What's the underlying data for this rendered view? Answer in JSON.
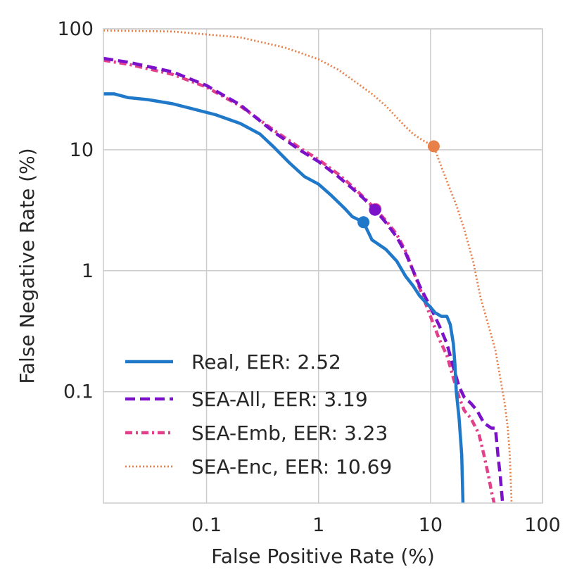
{
  "chart_data": {
    "type": "line",
    "title": "",
    "xlabel": "False Positive Rate (%)",
    "ylabel": "False Negative Rate (%)",
    "xscale": "log",
    "yscale": "log",
    "xlim": [
      0.012,
      100
    ],
    "ylim": [
      0.012,
      100
    ],
    "xticks": [
      {
        "value": 0.1,
        "label": "0.1"
      },
      {
        "value": 1,
        "label": "1"
      },
      {
        "value": 10,
        "label": "10"
      },
      {
        "value": 100,
        "label": "100"
      }
    ],
    "yticks": [
      {
        "value": 0.1,
        "label": "0.1"
      },
      {
        "value": 1,
        "label": "1"
      },
      {
        "value": 10,
        "label": "10"
      },
      {
        "value": 100,
        "label": "100"
      }
    ],
    "grid": true,
    "legend_position": "bottom-left",
    "series": [
      {
        "name": "Real, EER: 2.52",
        "color": "#1f78c8",
        "style": "solid",
        "eer": 2.52,
        "eer_point": [
          2.52,
          2.52
        ],
        "points": [
          [
            0.012,
            29
          ],
          [
            0.015,
            29
          ],
          [
            0.02,
            27
          ],
          [
            0.03,
            26
          ],
          [
            0.05,
            24
          ],
          [
            0.08,
            21.5
          ],
          [
            0.12,
            19.5
          ],
          [
            0.2,
            16.5
          ],
          [
            0.3,
            13.5
          ],
          [
            0.4,
            10.5
          ],
          [
            0.55,
            7.8
          ],
          [
            0.75,
            6.0
          ],
          [
            1.0,
            5.2
          ],
          [
            1.3,
            4.2
          ],
          [
            1.7,
            3.3
          ],
          [
            2.0,
            2.8
          ],
          [
            2.52,
            2.52
          ],
          [
            3.0,
            1.8
          ],
          [
            4.0,
            1.5
          ],
          [
            5.0,
            1.2
          ],
          [
            6.0,
            0.9
          ],
          [
            7.0,
            0.75
          ],
          [
            8.0,
            0.62
          ],
          [
            9.0,
            0.55
          ],
          [
            10.0,
            0.5
          ],
          [
            11.0,
            0.45
          ],
          [
            12.5,
            0.42
          ],
          [
            14.0,
            0.42
          ],
          [
            15.0,
            0.36
          ],
          [
            16.0,
            0.25
          ],
          [
            16.5,
            0.17
          ],
          [
            17.0,
            0.1
          ],
          [
            18.0,
            0.06
          ],
          [
            19.0,
            0.03
          ],
          [
            19.5,
            0.012
          ]
        ]
      },
      {
        "name": "SEA-All, EER: 3.19",
        "color": "#7b12c9",
        "style": "dashed",
        "eer": 3.19,
        "eer_point": [
          3.19,
          3.19
        ],
        "points": [
          [
            0.012,
            57
          ],
          [
            0.02,
            53
          ],
          [
            0.05,
            44
          ],
          [
            0.1,
            34
          ],
          [
            0.2,
            23.5
          ],
          [
            0.4,
            14
          ],
          [
            0.7,
            9.8
          ],
          [
            1.0,
            8.0
          ],
          [
            1.5,
            6.0
          ],
          [
            2.0,
            4.8
          ],
          [
            2.5,
            4.0
          ],
          [
            3.19,
            3.19
          ],
          [
            4.0,
            2.5
          ],
          [
            5.0,
            1.9
          ],
          [
            6.0,
            1.4
          ],
          [
            7.0,
            1.0
          ],
          [
            8.0,
            0.75
          ],
          [
            10.0,
            0.5
          ],
          [
            12.0,
            0.35
          ],
          [
            14.0,
            0.25
          ],
          [
            16.0,
            0.16
          ],
          [
            18.0,
            0.11
          ],
          [
            20.0,
            0.09
          ],
          [
            23.0,
            0.08
          ],
          [
            26.0,
            0.07
          ],
          [
            30.0,
            0.055
          ],
          [
            35.0,
            0.05
          ],
          [
            38.0,
            0.05
          ],
          [
            40.0,
            0.03
          ],
          [
            42.0,
            0.02
          ],
          [
            44.0,
            0.012
          ]
        ]
      },
      {
        "name": "SEA-Emb, EER: 3.23",
        "color": "#e2408a",
        "style": "dashdot",
        "eer": 3.23,
        "eer_point": [
          3.23,
          3.23
        ],
        "points": [
          [
            0.012,
            55
          ],
          [
            0.02,
            51
          ],
          [
            0.05,
            42
          ],
          [
            0.1,
            33
          ],
          [
            0.2,
            23
          ],
          [
            0.4,
            14.5
          ],
          [
            0.7,
            10.2
          ],
          [
            1.0,
            8.3
          ],
          [
            1.5,
            6.3
          ],
          [
            2.0,
            5.0
          ],
          [
            2.5,
            4.1
          ],
          [
            3.23,
            3.23
          ],
          [
            4.0,
            2.6
          ],
          [
            5.0,
            2.0
          ],
          [
            6.0,
            1.45
          ],
          [
            7.0,
            1.0
          ],
          [
            8.0,
            0.72
          ],
          [
            10.0,
            0.42
          ],
          [
            12.0,
            0.27
          ],
          [
            14.0,
            0.2
          ],
          [
            16.0,
            0.13
          ],
          [
            18.0,
            0.09
          ],
          [
            20.0,
            0.07
          ],
          [
            23.0,
            0.06
          ],
          [
            27.0,
            0.045
          ],
          [
            30.0,
            0.03
          ],
          [
            33.0,
            0.02
          ],
          [
            35.0,
            0.015
          ],
          [
            37.0,
            0.012
          ]
        ]
      },
      {
        "name": "SEA-Enc, EER: 10.69",
        "color": "#e8804a",
        "style": "dotted",
        "eer": 10.69,
        "eer_point": [
          10.69,
          10.69
        ],
        "points": [
          [
            0.012,
            97
          ],
          [
            0.05,
            95
          ],
          [
            0.1,
            90
          ],
          [
            0.2,
            85
          ],
          [
            0.3,
            78
          ],
          [
            0.5,
            70
          ],
          [
            0.7,
            63
          ],
          [
            1.0,
            56
          ],
          [
            1.5,
            46
          ],
          [
            2.0,
            38
          ],
          [
            3.0,
            29
          ],
          [
            4.0,
            23
          ],
          [
            5.0,
            18.5
          ],
          [
            6.0,
            15.5
          ],
          [
            7.0,
            13.5
          ],
          [
            8.5,
            12.0
          ],
          [
            10.69,
            10.69
          ],
          [
            12.0,
            8.0
          ],
          [
            14.0,
            5.5
          ],
          [
            17.0,
            3.5
          ],
          [
            20.0,
            2.2
          ],
          [
            24.0,
            1.2
          ],
          [
            28.0,
            0.6
          ],
          [
            33.0,
            0.35
          ],
          [
            38.0,
            0.22
          ],
          [
            42.0,
            0.13
          ],
          [
            46.0,
            0.08
          ],
          [
            49.0,
            0.05
          ],
          [
            51.0,
            0.03
          ],
          [
            53.0,
            0.012
          ]
        ]
      }
    ]
  }
}
